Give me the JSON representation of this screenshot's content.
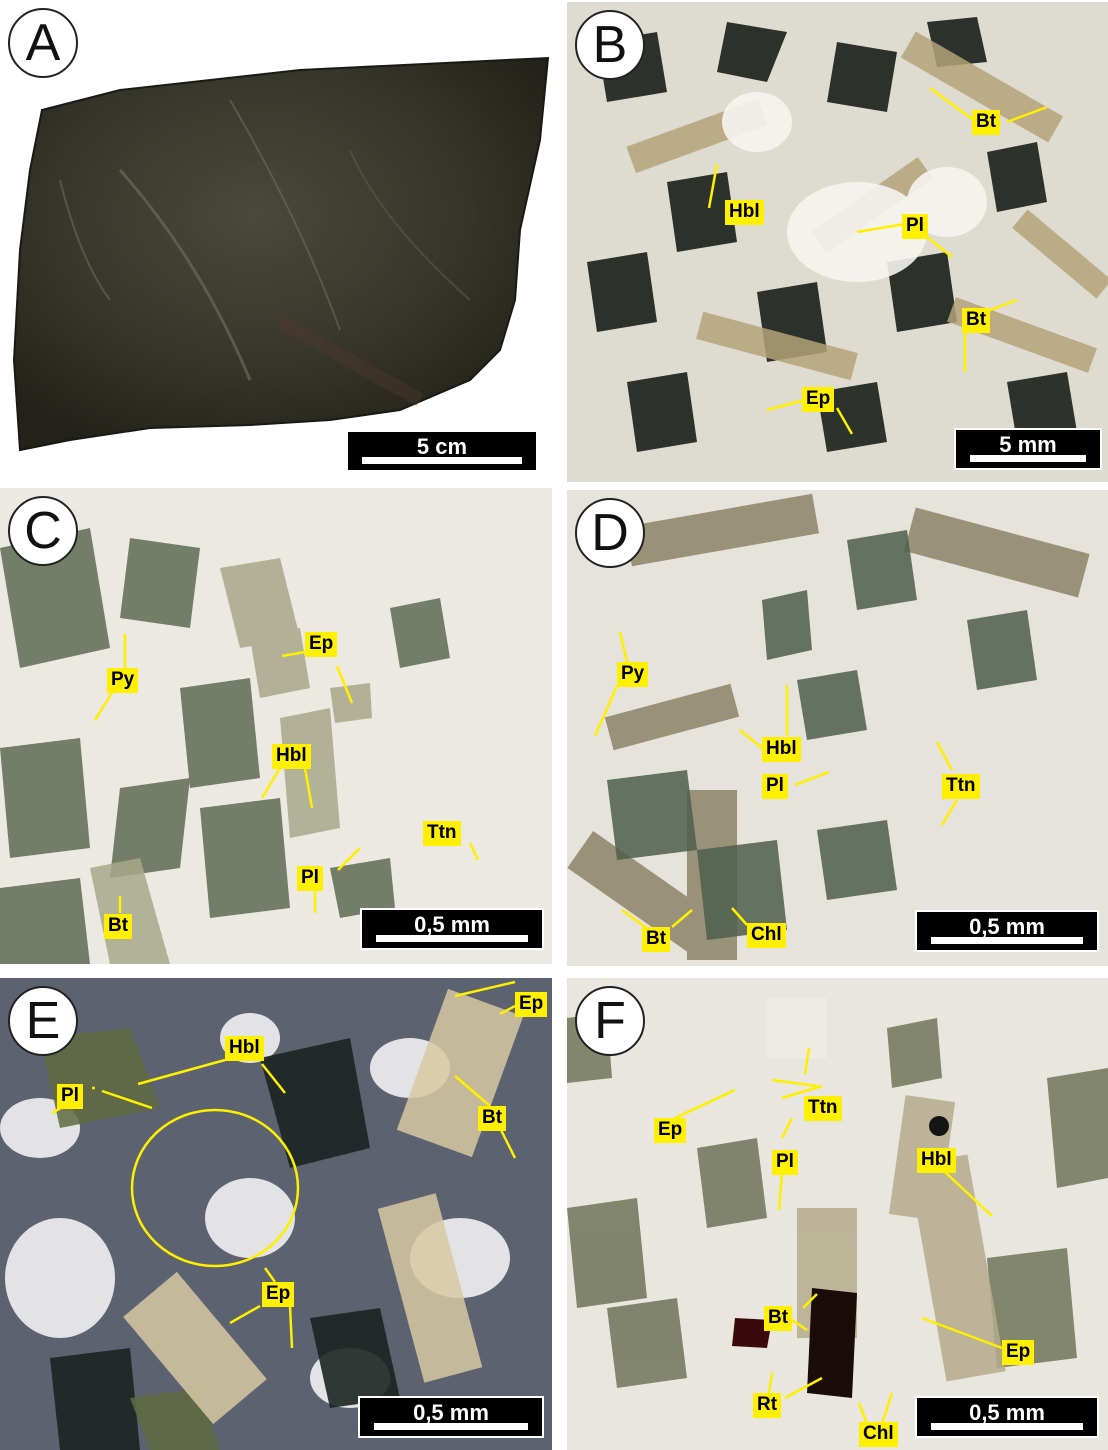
{
  "panels": {
    "A": {
      "label": "A",
      "scale": "5 cm"
    },
    "B": {
      "label": "B",
      "scale": "5 mm",
      "minerals": {
        "bt1": "Bt",
        "hbl": "Hbl",
        "pl": "Pl",
        "bt2": "Bt",
        "ep": "Ep"
      }
    },
    "C": {
      "label": "C",
      "scale": "0,5 mm",
      "minerals": {
        "ep": "Ep",
        "py": "Py",
        "hbl": "Hbl",
        "ttn": "Ttn",
        "pl": "Pl",
        "bt": "Bt"
      }
    },
    "D": {
      "label": "D",
      "scale": "0,5 mm",
      "minerals": {
        "py": "Py",
        "hbl": "Hbl",
        "pl": "Pl",
        "ttn": "Ttn",
        "bt": "Bt",
        "chl": "Chl"
      }
    },
    "E": {
      "label": "E",
      "scale": "0,5 mm",
      "minerals": {
        "ep1": "Ep",
        "hbl": "Hbl",
        "bt": "Bt",
        "pl": "Pl",
        "ep2": "Ep"
      }
    },
    "F": {
      "label": "F",
      "scale": "0,5 mm",
      "minerals": {
        "ttn": "Ttn",
        "ep1": "Ep",
        "pl": "Pl",
        "hbl": "Hbl",
        "bt": "Bt",
        "ep2": "Ep",
        "rt": "Rt",
        "chl": "Chl"
      }
    }
  },
  "colors": {
    "annotation": "#ffef00",
    "rock": "#3a3a2c",
    "ppl_background": "#e8e6e0",
    "xpl_background": "#5a6070"
  }
}
